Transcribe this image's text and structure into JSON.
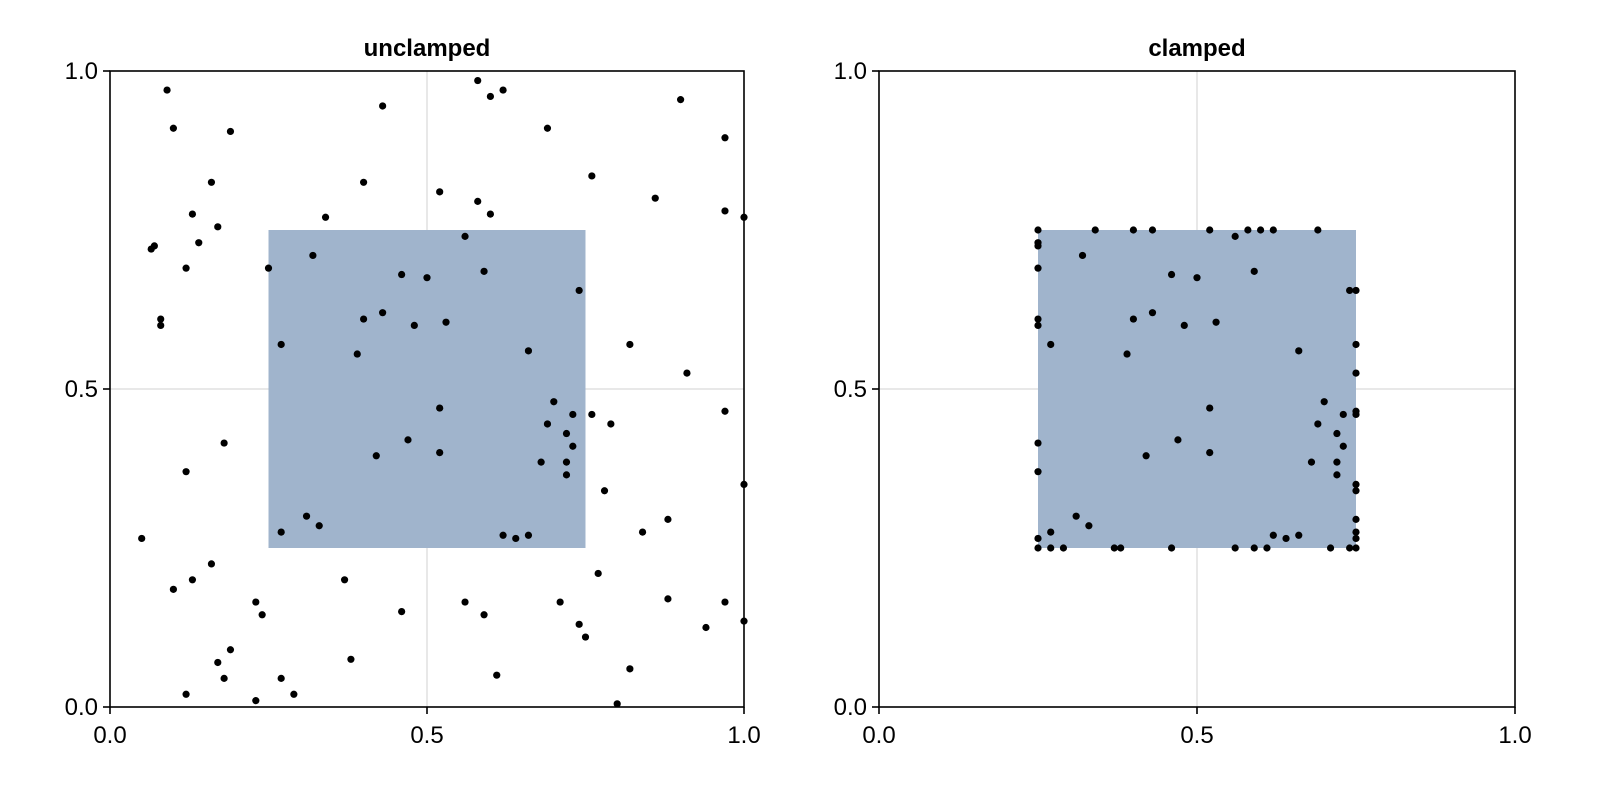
{
  "chart_data": [
    {
      "type": "scatter",
      "title": "unclamped",
      "xlim": [
        0,
        1
      ],
      "ylim": [
        0,
        1
      ],
      "xticks": [
        "0.0",
        "0.5",
        "1.0"
      ],
      "yticks": [
        "0.0",
        "0.5",
        "1.0"
      ],
      "grid": true,
      "rect": {
        "x0": 0.25,
        "y0": 0.25,
        "x1": 0.75,
        "y1": 0.75,
        "color": "#a0b4cc"
      },
      "point_color": "#000000",
      "points": [
        [
          0.09,
          0.97
        ],
        [
          0.1,
          0.91
        ],
        [
          0.19,
          0.905
        ],
        [
          0.43,
          0.945
        ],
        [
          0.58,
          0.985
        ],
        [
          0.6,
          0.96
        ],
        [
          0.62,
          0.97
        ],
        [
          0.69,
          0.91
        ],
        [
          0.9,
          0.955
        ],
        [
          0.97,
          0.895
        ],
        [
          0.16,
          0.825
        ],
        [
          0.4,
          0.825
        ],
        [
          0.52,
          0.81
        ],
        [
          0.58,
          0.795
        ],
        [
          0.6,
          0.775
        ],
        [
          0.76,
          0.835
        ],
        [
          0.86,
          0.8
        ],
        [
          0.97,
          0.78
        ],
        [
          1.0,
          0.77
        ],
        [
          0.13,
          0.775
        ],
        [
          0.34,
          0.77
        ],
        [
          0.17,
          0.755
        ],
        [
          0.07,
          0.725
        ],
        [
          0.065,
          0.72
        ],
        [
          0.14,
          0.73
        ],
        [
          0.56,
          0.74
        ],
        [
          0.32,
          0.71
        ],
        [
          0.12,
          0.69
        ],
        [
          0.25,
          0.69
        ],
        [
          0.46,
          0.68
        ],
        [
          0.5,
          0.675
        ],
        [
          0.59,
          0.685
        ],
        [
          0.74,
          0.655
        ],
        [
          0.08,
          0.61
        ],
        [
          0.08,
          0.6
        ],
        [
          0.4,
          0.61
        ],
        [
          0.43,
          0.62
        ],
        [
          0.48,
          0.6
        ],
        [
          0.53,
          0.605
        ],
        [
          0.27,
          0.57
        ],
        [
          0.39,
          0.555
        ],
        [
          0.66,
          0.56
        ],
        [
          0.82,
          0.57
        ],
        [
          0.91,
          0.525
        ],
        [
          0.7,
          0.48
        ],
        [
          0.73,
          0.46
        ],
        [
          0.76,
          0.46
        ],
        [
          0.52,
          0.47
        ],
        [
          0.69,
          0.445
        ],
        [
          0.79,
          0.445
        ],
        [
          0.72,
          0.43
        ],
        [
          0.47,
          0.42
        ],
        [
          0.18,
          0.415
        ],
        [
          0.73,
          0.41
        ],
        [
          0.42,
          0.395
        ],
        [
          0.52,
          0.4
        ],
        [
          0.68,
          0.385
        ],
        [
          0.72,
          0.385
        ],
        [
          0.12,
          0.37
        ],
        [
          0.72,
          0.365
        ],
        [
          0.78,
          0.34
        ],
        [
          1.0,
          0.35
        ],
        [
          0.31,
          0.3
        ],
        [
          0.33,
          0.285
        ],
        [
          0.88,
          0.295
        ],
        [
          0.27,
          0.275
        ],
        [
          0.84,
          0.275
        ],
        [
          0.62,
          0.27
        ],
        [
          0.64,
          0.265
        ],
        [
          0.66,
          0.27
        ],
        [
          0.05,
          0.265
        ],
        [
          0.16,
          0.225
        ],
        [
          0.77,
          0.21
        ],
        [
          0.13,
          0.2
        ],
        [
          0.37,
          0.2
        ],
        [
          0.1,
          0.185
        ],
        [
          0.23,
          0.165
        ],
        [
          0.24,
          0.145
        ],
        [
          0.46,
          0.15
        ],
        [
          0.56,
          0.165
        ],
        [
          0.59,
          0.145
        ],
        [
          0.71,
          0.165
        ],
        [
          0.88,
          0.17
        ],
        [
          0.97,
          0.165
        ],
        [
          0.74,
          0.13
        ],
        [
          0.75,
          0.11
        ],
        [
          0.94,
          0.125
        ],
        [
          1.0,
          0.135
        ],
        [
          0.19,
          0.09
        ],
        [
          0.17,
          0.07
        ],
        [
          0.38,
          0.075
        ],
        [
          0.82,
          0.06
        ],
        [
          0.18,
          0.045
        ],
        [
          0.27,
          0.045
        ],
        [
          0.61,
          0.05
        ],
        [
          0.12,
          0.02
        ],
        [
          0.29,
          0.02
        ],
        [
          0.23,
          0.01
        ],
        [
          0.8,
          0.005
        ],
        [
          0.97,
          0.465
        ]
      ]
    },
    {
      "type": "scatter",
      "title": "clamped",
      "xlim": [
        0,
        1
      ],
      "ylim": [
        0,
        1
      ],
      "xticks": [
        "0.0",
        "0.5",
        "1.0"
      ],
      "yticks": [
        "0.0",
        "0.5",
        "1.0"
      ],
      "grid": true,
      "rect": {
        "x0": 0.25,
        "y0": 0.25,
        "x1": 0.75,
        "y1": 0.75,
        "color": "#a0b4cc"
      },
      "point_color": "#000000",
      "points": [
        [
          0.25,
          0.75
        ],
        [
          0.25,
          0.73
        ],
        [
          0.25,
          0.725
        ],
        [
          0.25,
          0.69
        ],
        [
          0.25,
          0.61
        ],
        [
          0.25,
          0.6
        ],
        [
          0.25,
          0.415
        ],
        [
          0.25,
          0.37
        ],
        [
          0.25,
          0.265
        ],
        [
          0.25,
          0.25
        ],
        [
          0.27,
          0.275
        ],
        [
          0.27,
          0.25
        ],
        [
          0.29,
          0.25
        ],
        [
          0.37,
          0.25
        ],
        [
          0.38,
          0.25
        ],
        [
          0.46,
          0.25
        ],
        [
          0.56,
          0.25
        ],
        [
          0.59,
          0.25
        ],
        [
          0.61,
          0.25
        ],
        [
          0.71,
          0.25
        ],
        [
          0.74,
          0.25
        ],
        [
          0.75,
          0.25
        ],
        [
          0.75,
          0.265
        ],
        [
          0.75,
          0.275
        ],
        [
          0.75,
          0.295
        ],
        [
          0.75,
          0.34
        ],
        [
          0.75,
          0.35
        ],
        [
          0.75,
          0.46
        ],
        [
          0.75,
          0.465
        ],
        [
          0.75,
          0.525
        ],
        [
          0.75,
          0.57
        ],
        [
          0.75,
          0.655
        ],
        [
          0.34,
          0.75
        ],
        [
          0.4,
          0.75
        ],
        [
          0.43,
          0.75
        ],
        [
          0.52,
          0.75
        ],
        [
          0.58,
          0.75
        ],
        [
          0.6,
          0.75
        ],
        [
          0.62,
          0.75
        ],
        [
          0.69,
          0.75
        ],
        [
          0.56,
          0.74
        ],
        [
          0.32,
          0.71
        ],
        [
          0.46,
          0.68
        ],
        [
          0.5,
          0.675
        ],
        [
          0.59,
          0.685
        ],
        [
          0.74,
          0.655
        ],
        [
          0.4,
          0.61
        ],
        [
          0.43,
          0.62
        ],
        [
          0.48,
          0.6
        ],
        [
          0.53,
          0.605
        ],
        [
          0.27,
          0.57
        ],
        [
          0.39,
          0.555
        ],
        [
          0.66,
          0.56
        ],
        [
          0.7,
          0.48
        ],
        [
          0.73,
          0.46
        ],
        [
          0.52,
          0.47
        ],
        [
          0.69,
          0.445
        ],
        [
          0.72,
          0.43
        ],
        [
          0.47,
          0.42
        ],
        [
          0.73,
          0.41
        ],
        [
          0.42,
          0.395
        ],
        [
          0.52,
          0.4
        ],
        [
          0.68,
          0.385
        ],
        [
          0.72,
          0.385
        ],
        [
          0.72,
          0.365
        ],
        [
          0.31,
          0.3
        ],
        [
          0.33,
          0.285
        ],
        [
          0.62,
          0.27
        ],
        [
          0.64,
          0.265
        ],
        [
          0.66,
          0.27
        ]
      ]
    }
  ]
}
